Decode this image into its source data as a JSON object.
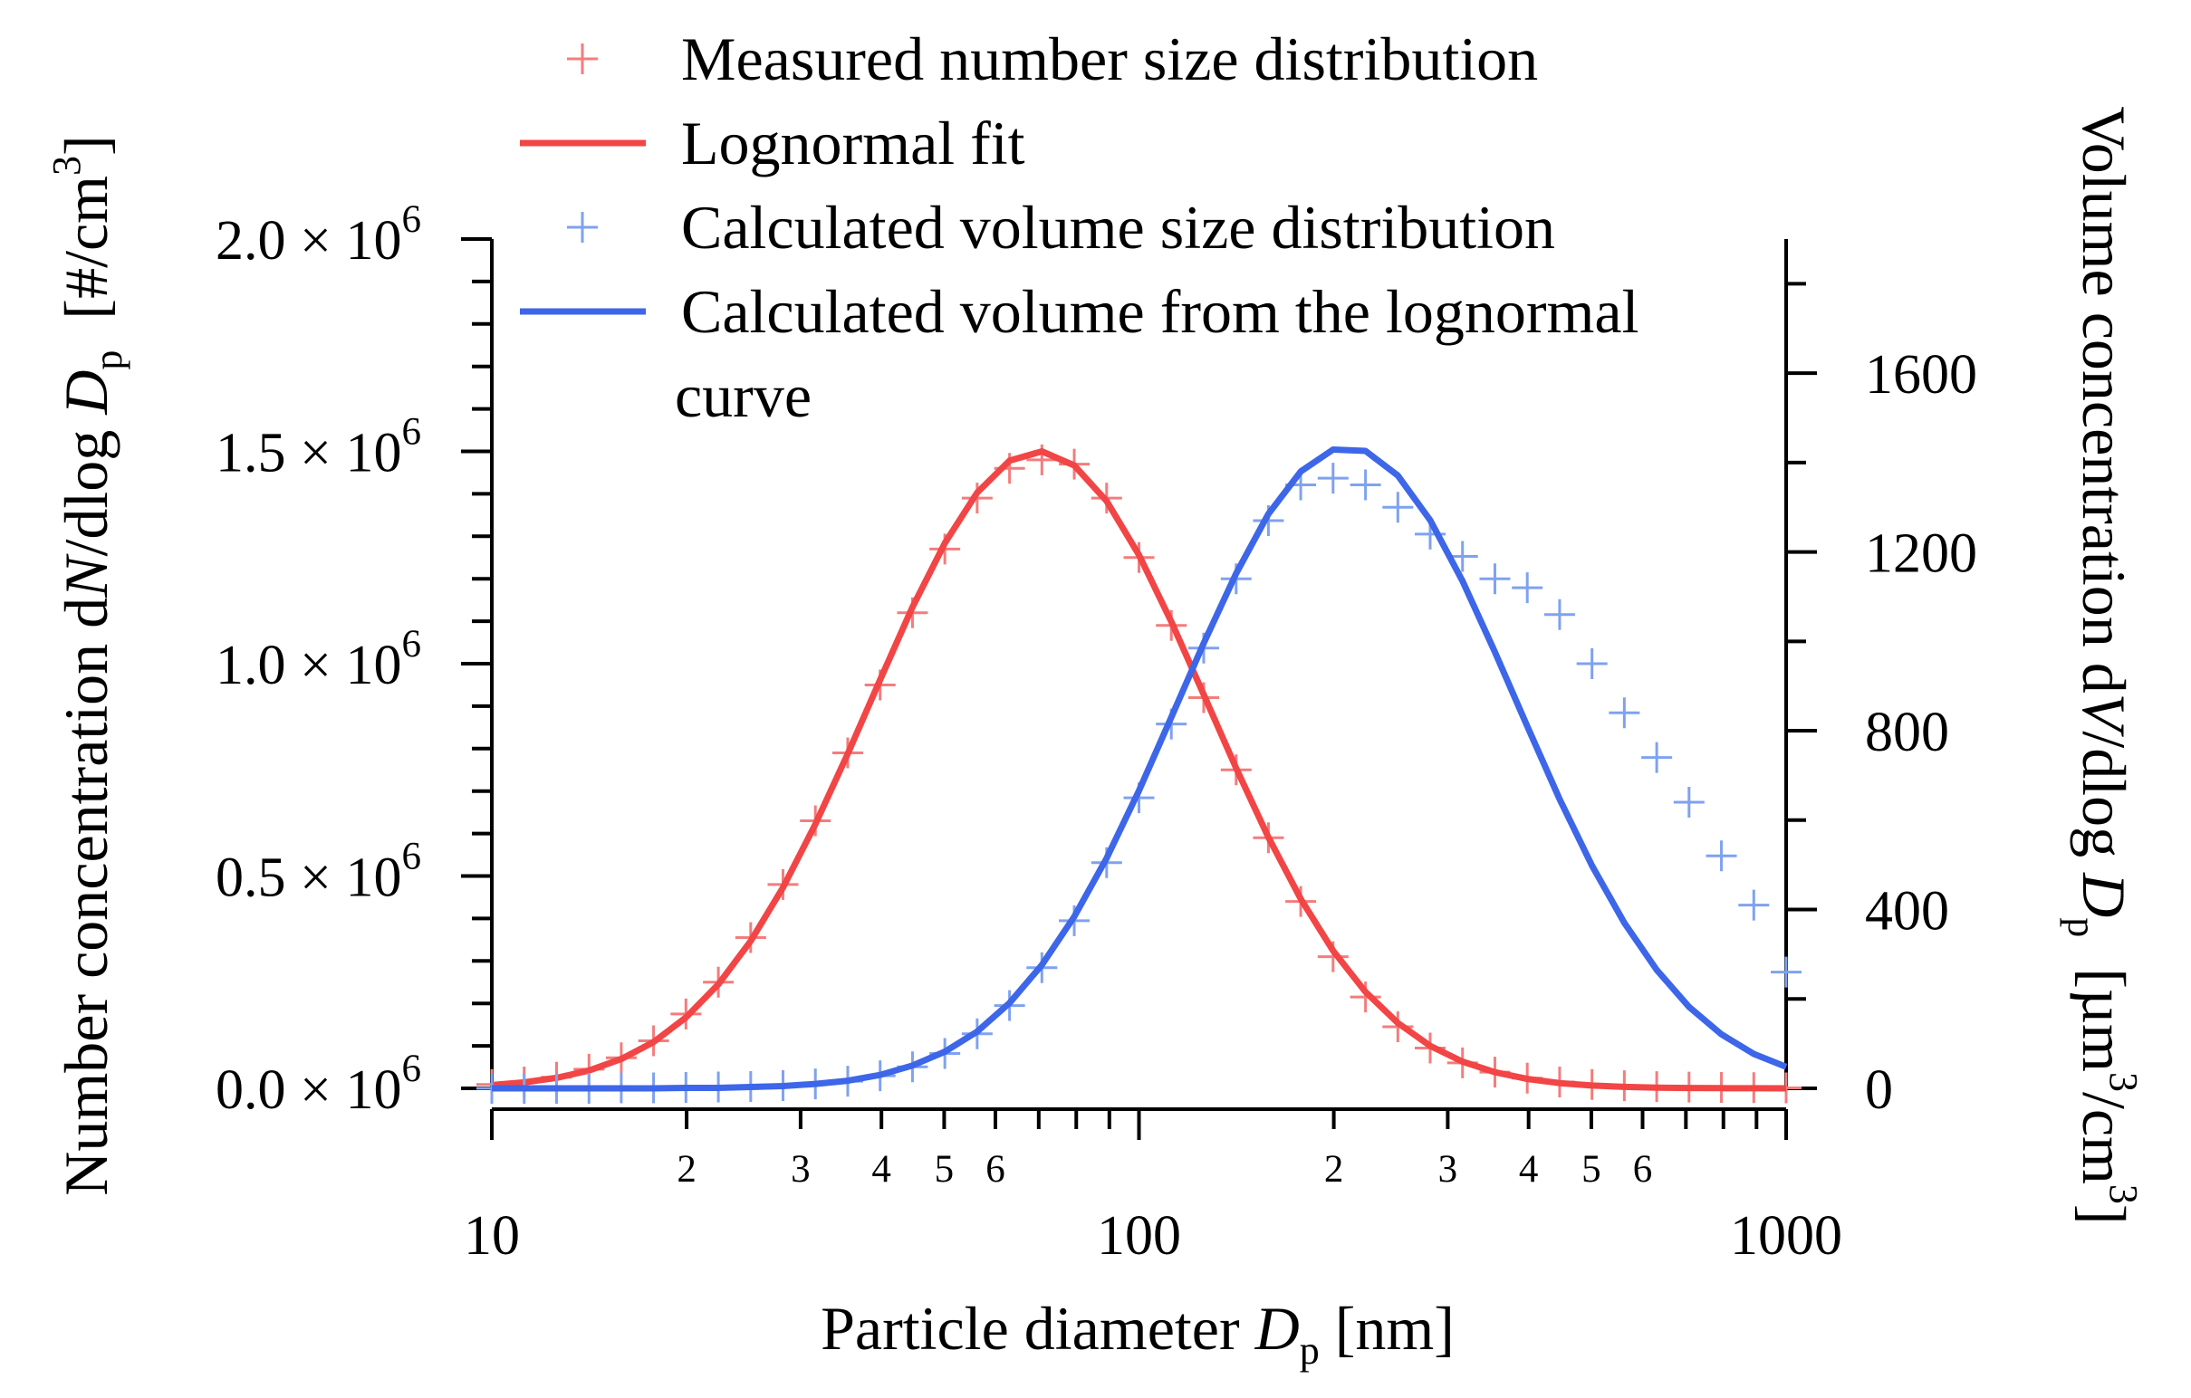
{
  "chart_data": {
    "type": "line",
    "xlabel": [
      "Particle diameter ",
      "D",
      "p",
      " [nm]"
    ],
    "ylabel": [
      "Number concentration d",
      "N",
      "/dlog ",
      "D",
      "p",
      "  [#/cm",
      "3",
      "]"
    ],
    "y2label": [
      "Volume concentration d",
      "V",
      "/dlog ",
      "D",
      "p",
      "  [µm",
      "3",
      "/cm",
      "3",
      "]"
    ],
    "xscale": "log",
    "xlim": [
      10,
      1000
    ],
    "xticks": [
      10,
      100,
      1000
    ],
    "xminor_ticks": [
      {
        "value": 20,
        "label": "2"
      },
      {
        "value": 30,
        "label": "3"
      },
      {
        "value": 40,
        "label": "4"
      },
      {
        "value": 50,
        "label": "5"
      },
      {
        "value": 60,
        "label": "6"
      },
      70,
      80,
      90,
      {
        "value": 200,
        "label": "2"
      },
      {
        "value": 300,
        "label": "3"
      },
      {
        "value": 400,
        "label": "4"
      },
      {
        "value": 500,
        "label": "5"
      },
      {
        "value": 600,
        "label": "6"
      },
      700,
      800,
      900
    ],
    "ylim": [
      0,
      2000000
    ],
    "yticks": [
      {
        "value": 0,
        "label": "0.0 × 10"
      },
      {
        "value": 500000,
        "label": "0.5 × 10"
      },
      {
        "value": 1000000,
        "label": "1.0 × 10"
      },
      {
        "value": 1500000,
        "label": "1.5 × 10"
      },
      {
        "value": 2000000,
        "label": "2.0 × 10"
      }
    ],
    "ytick_exponent": "6",
    "yminor_ticks": [
      100000,
      200000,
      300000,
      400000,
      600000,
      700000,
      800000,
      900000,
      1100000,
      1200000,
      1300000,
      1400000,
      1600000,
      1700000,
      1800000,
      1900000
    ],
    "y2lim": [
      0,
      1900
    ],
    "y2ticks": [
      0,
      400,
      800,
      1200,
      1600
    ],
    "y2minor_ticks": [
      200,
      600,
      1000,
      1400,
      1800
    ],
    "legend": "top",
    "x": [
      10,
      11.22,
      12.59,
      14.13,
      15.85,
      17.78,
      19.95,
      22.39,
      25.12,
      28.18,
      31.62,
      35.48,
      39.81,
      44.67,
      50.12,
      56.23,
      63.1,
      70.79,
      79.43,
      89.13,
      100,
      112.2,
      125.9,
      141.3,
      158.5,
      177.8,
      199.5,
      223.9,
      251.2,
      281.8,
      316.2,
      354.8,
      398.1,
      446.7,
      501.2,
      562.3,
      631,
      707.9,
      794.3,
      891.3,
      1000
    ],
    "series": [
      {
        "name": "Measured number size distribution",
        "mode": "markers",
        "color": "#f47c7c",
        "values": [
          9000,
          15000,
          26000,
          45000,
          72000,
          112000,
          175000,
          250000,
          355000,
          480000,
          630000,
          790000,
          950000,
          1120000,
          1270000,
          1390000,
          1460000,
          1480000,
          1470000,
          1390000,
          1250000,
          1090000,
          920000,
          750000,
          590000,
          440000,
          310000,
          215000,
          145000,
          95000,
          60000,
          38000,
          24000,
          15000,
          9000,
          6000,
          4000,
          3000,
          2000,
          1500,
          1000
        ]
      },
      {
        "name": "Lognormal fit",
        "mode": "line",
        "color": "#f24545",
        "values": [
          7600,
          14000,
          24700,
          42100,
          69100,
          109000,
          167000,
          245000,
          347000,
          473000,
          622000,
          788000,
          962000,
          1133000,
          1284000,
          1403000,
          1478000,
          1500000,
          1467000,
          1383000,
          1256000,
          1099000,
          927000,
          754000,
          591000,
          446000,
          324000,
          227000,
          154000,
          100000,
          62800,
          38000,
          22200,
          12400,
          6700,
          3500,
          1800,
          860,
          400,
          180,
          80
        ]
      },
      {
        "name": "Calculated volume size distribution",
        "mode": "markers",
        "color": "#7fa2f0",
        "axis": "y2",
        "values": [
          0,
          0,
          0,
          0,
          1,
          1,
          2,
          3,
          4,
          6,
          10,
          16,
          28,
          48,
          78,
          122,
          185,
          270,
          375,
          505,
          650,
          815,
          985,
          1140,
          1270,
          1350,
          1365,
          1350,
          1300,
          1240,
          1190,
          1140,
          1120,
          1060,
          950,
          840,
          740,
          640,
          520,
          410,
          260
        ]
      },
      {
        "name": "Calculated volume from the lognormal curve",
        "mode": "line",
        "color": "#3d66e8",
        "axis": "y2",
        "values": [
          0,
          0,
          0,
          0,
          0,
          0,
          1,
          1,
          3,
          5,
          10,
          17,
          30,
          51,
          82,
          127,
          191,
          276,
          384,
          515,
          666,
          830,
          996,
          1152,
          1285,
          1380,
          1429,
          1426,
          1371,
          1271,
          1135,
          976,
          810,
          647,
          498,
          370,
          265,
          182,
          121,
          77,
          48
        ]
      }
    ]
  }
}
